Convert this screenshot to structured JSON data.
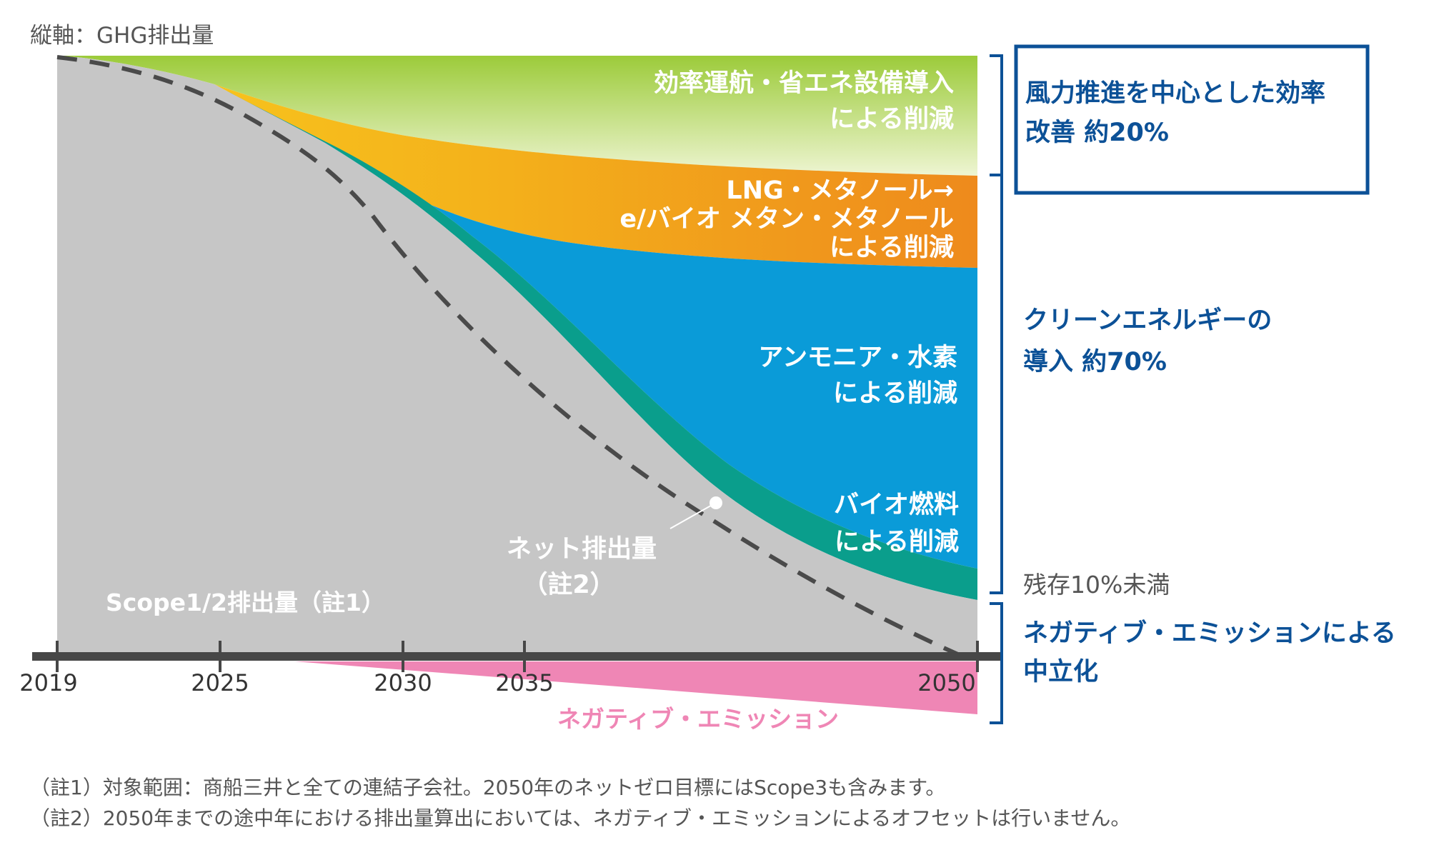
{
  "chart_data": {
    "type": "area",
    "axis_title": "縦軸：GHG排出量",
    "x_ticks": [
      "2019",
      "2025",
      "2030",
      "2035",
      "2050"
    ],
    "x_range": [
      2019,
      2050
    ],
    "bands": [
      {
        "name": "効率運航・省エネ設備導入による削減",
        "label_lines": [
          "効率運航・省エネ設備導入",
          "による削減"
        ],
        "color": "#9ccb3a"
      },
      {
        "name": "LNG・メタノール→e/バイオ メタン・メタノールによる削減",
        "label_lines": [
          "LNG・メタノール→",
          "e/バイオ メタン・メタノール",
          "による削減"
        ],
        "color": "#f0a21d"
      },
      {
        "name": "アンモニア・水素による削減",
        "label_lines": [
          "アンモニア・水素",
          "による削減"
        ],
        "color": "#0a9bd8"
      },
      {
        "name": "バイオ燃料による削減",
        "label_lines": [
          "バイオ燃料",
          "による削減"
        ],
        "color": "#0a9e8c"
      },
      {
        "name": "Scope1/2排出量（註1）",
        "label_lines": [
          "Scope1/2排出量（註1）"
        ],
        "color": "#c6c6c6"
      }
    ],
    "net_line_label_lines": [
      "ネット排出量",
      "（註2）"
    ],
    "negative_emission_label": "ネガティブ・エミッション",
    "right_annotations": {
      "efficiency": [
        "風力推進を中心とした効率",
        "改善 約20%"
      ],
      "clean_energy": [
        "クリーンエネルギーの",
        "導入 約70%"
      ],
      "residual": "残存10%未満",
      "neutralization": [
        "ネガティブ・エミッションによる",
        "中立化"
      ]
    },
    "legend": "inside-areas",
    "grid": false
  },
  "notes": [
    "（註1）対象範囲：商船三井と全ての連結子会社。2050年のネットゼロ目標にはScope3も含みます。",
    "（註2）2050年までの途中年における排出量算出においては、ネガティブ・エミッションによるオフセットは行いません。"
  ],
  "colors": {
    "axis": "#474747",
    "dashed_line": "#4a4a4a",
    "label_white": "#ffffff",
    "annotation_blue": "#0c5197",
    "box_border": "#0c5197",
    "bracket": "#0c5197",
    "negative_fill": "#ef86b5",
    "negative_text": "#ef86b5",
    "gray_text": "#555555",
    "yellow_band": "#f5cd1c"
  }
}
